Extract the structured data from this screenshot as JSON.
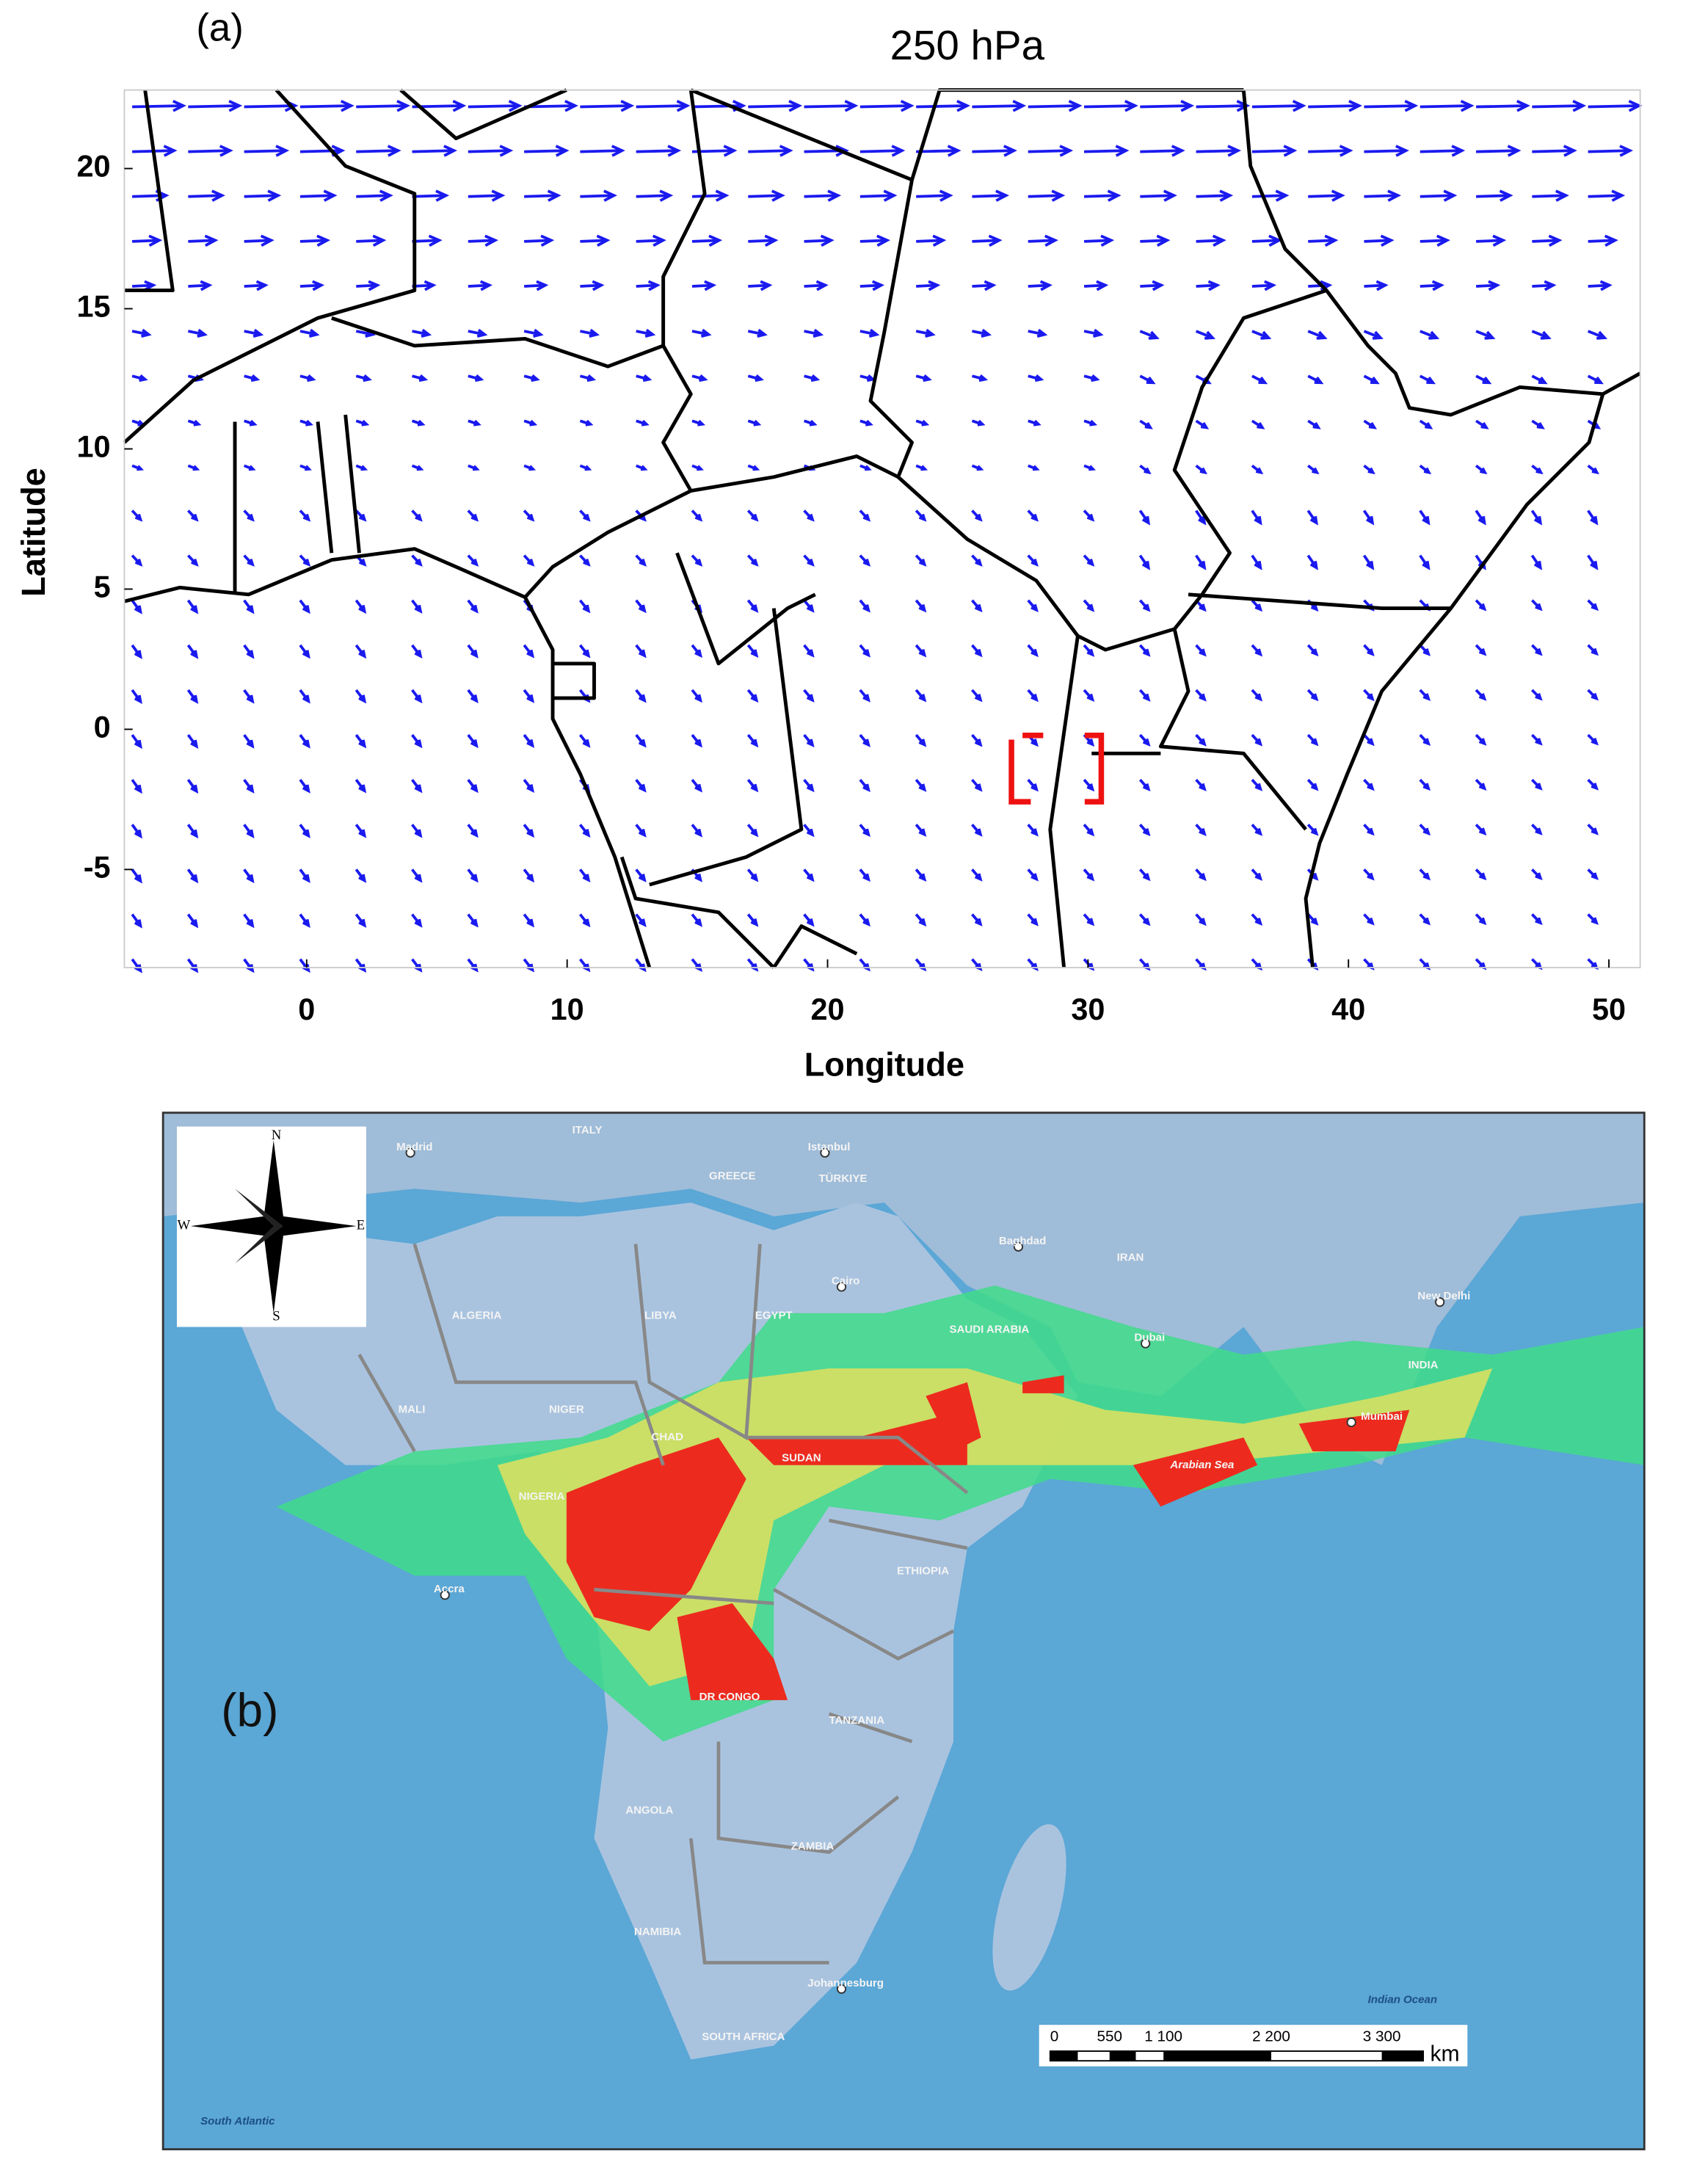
{
  "panel_a": {
    "label": "(a)",
    "title": "250 hPa",
    "xlabel": "Longitude",
    "ylabel": "Latitude",
    "xlim": [
      -7,
      51.2
    ],
    "ylim": [
      -8.5,
      22.8
    ],
    "xticks": [
      0,
      10,
      20,
      30,
      40,
      50
    ],
    "yticks": [
      -5,
      0,
      5,
      10,
      15,
      20
    ]
  },
  "panel_b": {
    "label": "(b)",
    "compass": [
      "N",
      "E",
      "S",
      "W"
    ],
    "places": [
      "Madrid",
      "ITALY",
      "Istanbul",
      "GREECE",
      "TÜRKIYE",
      "Baghdad",
      "IRAN",
      "Cairo",
      "ALGERIA",
      "LIBYA",
      "EGYPT",
      "SAUDI ARABIA",
      "Dubai",
      "New Delhi",
      "INDIA",
      "MALI",
      "NIGER",
      "CHAD",
      "SUDAN",
      "Arabian Sea",
      "Mumbai",
      "NIGERIA",
      "Accra",
      "ETHIOPIA",
      "DR CONGO",
      "TANZANIA",
      "ANGOLA",
      "ZAMBIA",
      "NAMIBIA",
      "Johannesburg",
      "SOUTH AFRICA",
      "Indian Ocean",
      "South Atlantic"
    ],
    "scale": {
      "labels": [
        "0",
        "550",
        "1 100",
        "2 200",
        "3 300"
      ],
      "unit": "km"
    }
  }
}
